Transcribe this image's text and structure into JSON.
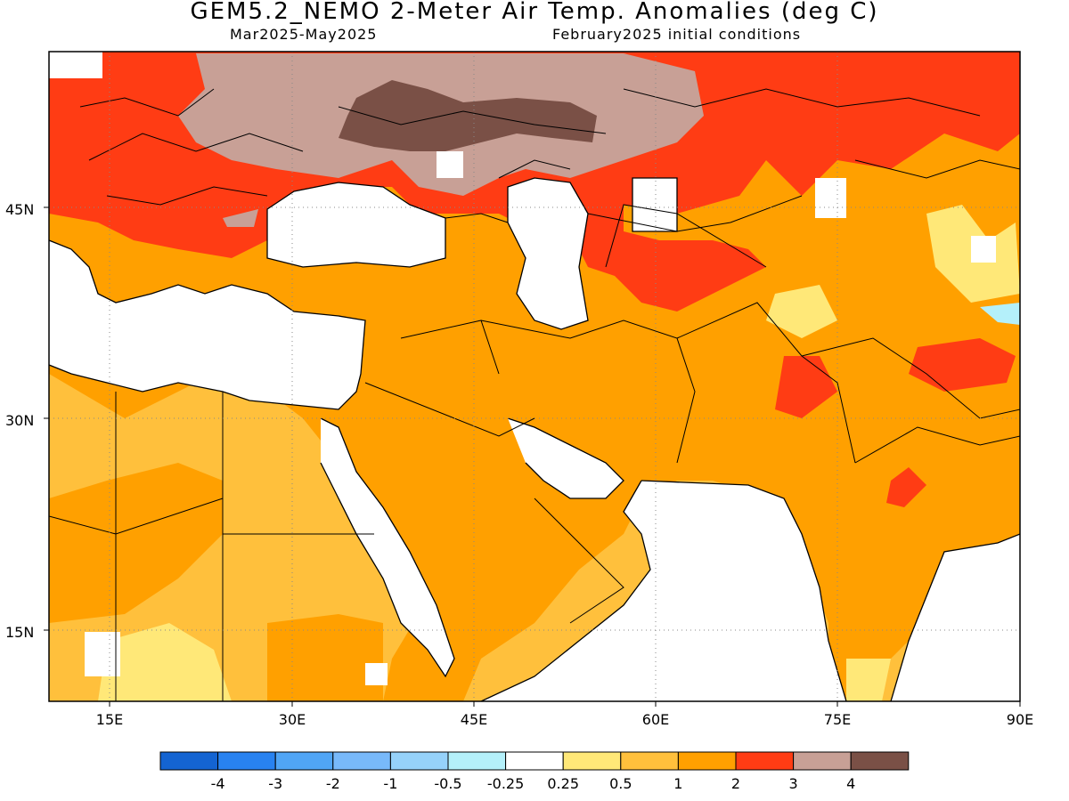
{
  "title": "GEM5.2_NEMO 2-Meter Air Temp. Anomalies (deg C)",
  "subtitle_period": "Mar2025-May2025",
  "subtitle_init": "February2025 initial conditions",
  "lat_labels": [
    "45N",
    "30N",
    "15N"
  ],
  "lon_labels": [
    "15E",
    "30E",
    "45E",
    "60E",
    "75E",
    "90E"
  ],
  "map_extent": {
    "lon": [
      10,
      90
    ],
    "lat": [
      10,
      56
    ]
  },
  "colorbar": {
    "colors": [
      "#1464d2",
      "#2882f0",
      "#50a5f5",
      "#78b9fa",
      "#96d2fa",
      "#b4f0fa",
      "#ffffff",
      "#ffe878",
      "#ffc03c",
      "#ffa000",
      "#ff3c14",
      "#c8a096",
      "#7a5046"
    ],
    "labels": [
      "-4",
      "-3",
      "-2",
      "-1",
      "-0.5",
      "-0.25",
      "0.25",
      "0.5",
      "1",
      "2",
      "3",
      "4"
    ]
  },
  "legend_colors": {
    "no_signal": "#ffffff",
    "c_0_5": "#ffe878",
    "c_0_5_1": "#ffc03c",
    "c_1_2": "#ffa000",
    "c_2_3": "#ff3c14",
    "c_3_4": "#c8a096",
    "c_gt4": "#7a5046"
  }
}
